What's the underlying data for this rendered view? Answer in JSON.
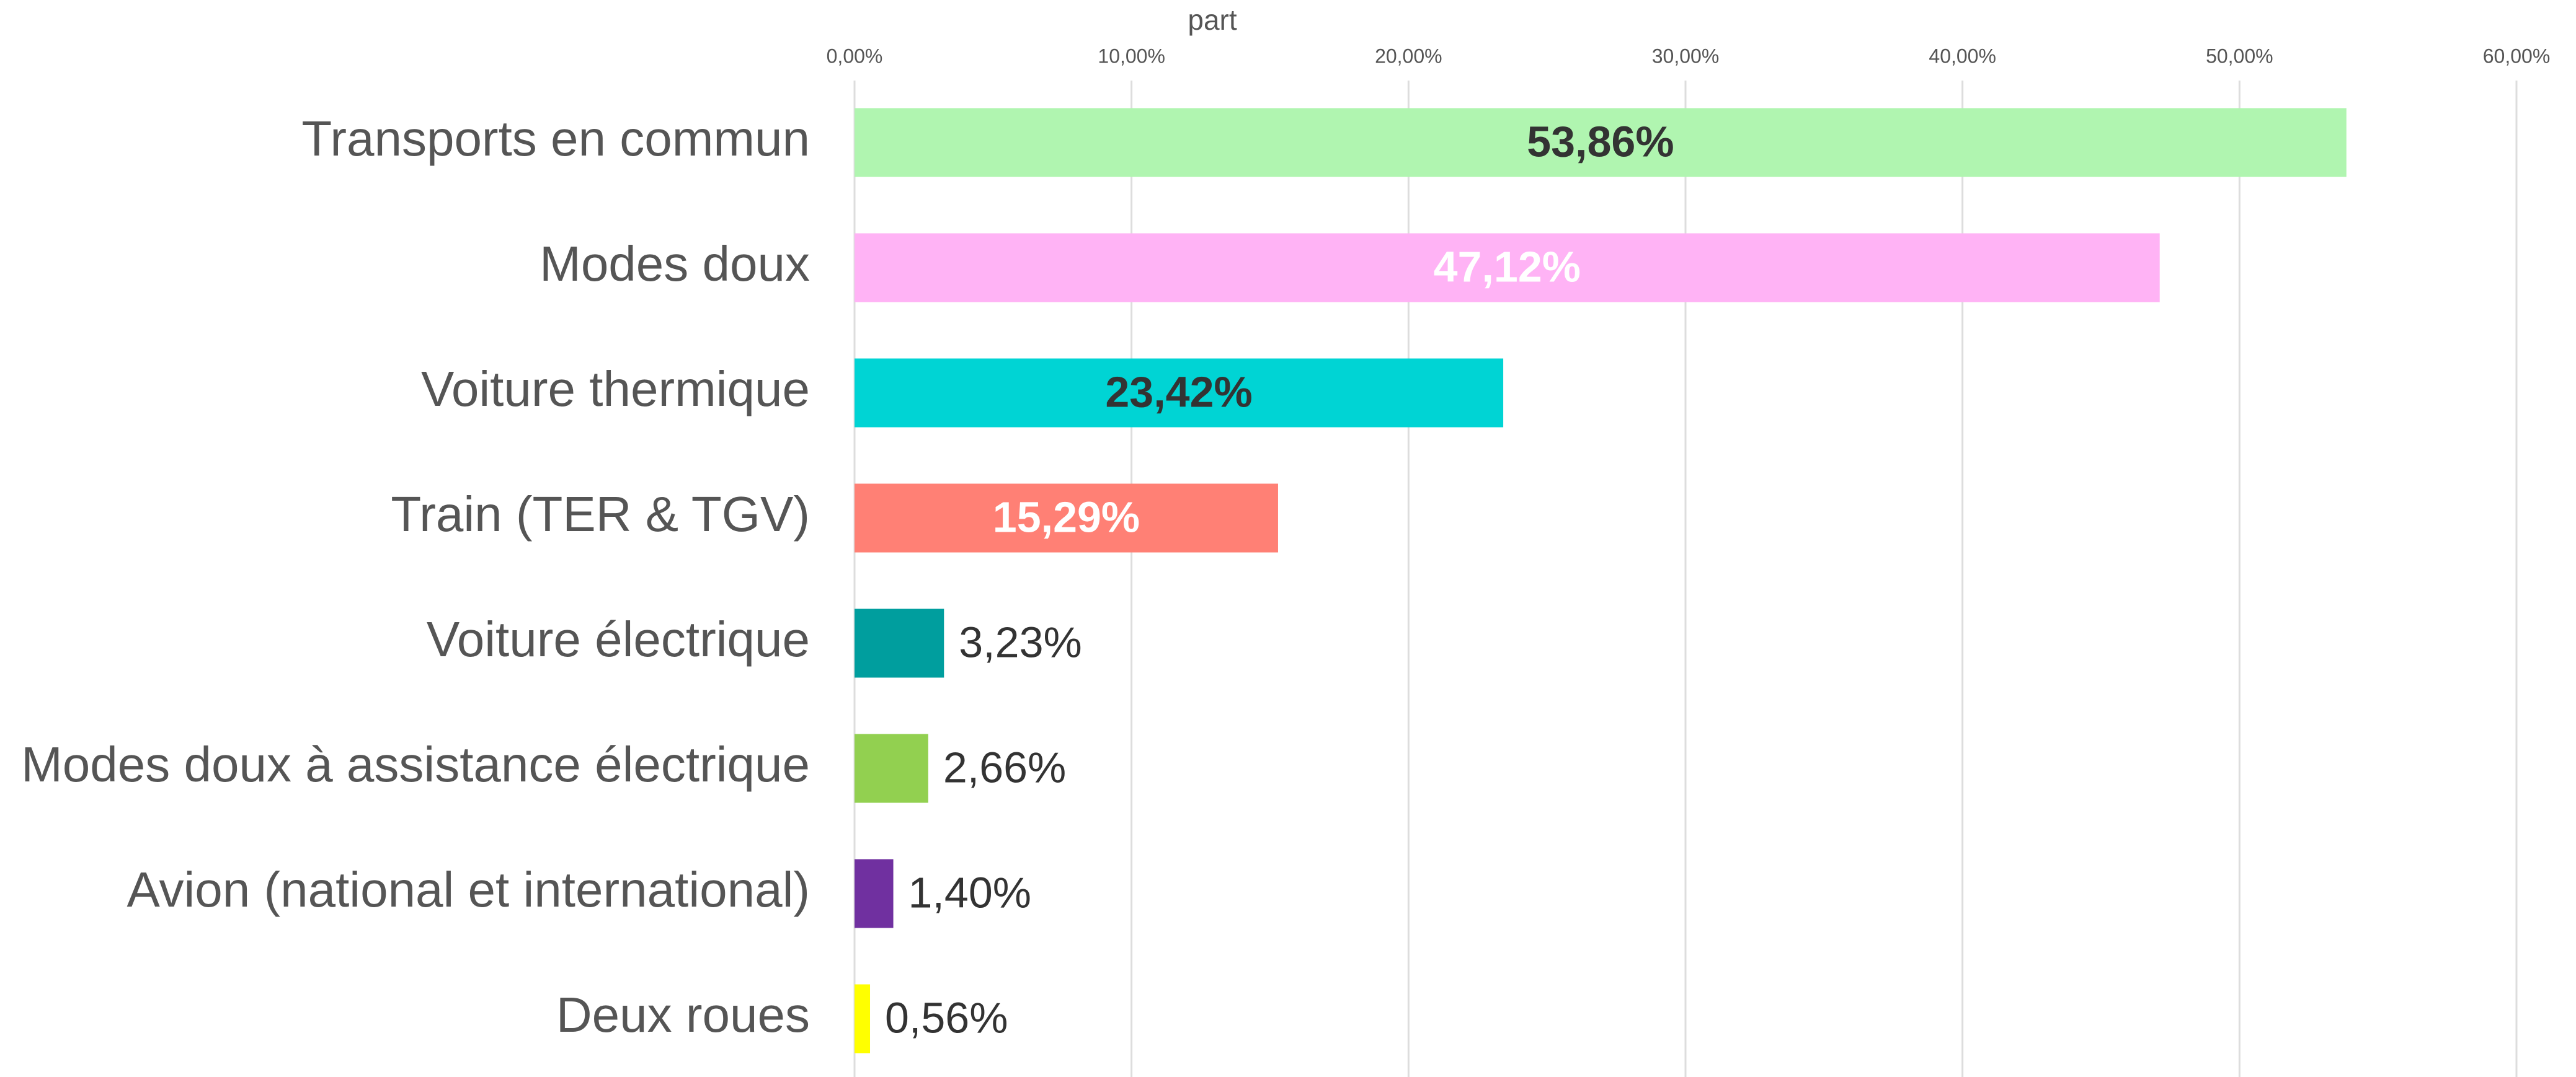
{
  "chart_data": {
    "type": "bar",
    "orientation": "horizontal",
    "x_label": "part",
    "categories": [
      "Transports en commun",
      "Modes doux",
      "Voiture thermique",
      "Train (TER & TGV)",
      "Voiture électrique",
      "Modes doux à assistance électrique",
      "Avion (national et international)",
      "Deux roues"
    ],
    "values": [
      53.86,
      47.12,
      23.42,
      15.29,
      3.23,
      2.66,
      1.4,
      0.56
    ],
    "value_labels": [
      "53,86%",
      "47,12%",
      "23,42%",
      "15,29%",
      "3,23%",
      "2,66%",
      "1,40%",
      "0,56%"
    ],
    "colors": [
      "#b0f5b0",
      "#ffb3f5",
      "#00d4d4",
      "#ff8075",
      "#009e9e",
      "#92d050",
      "#7030a0",
      "#ffff00"
    ],
    "label_colors": [
      "#333333",
      "#ffffff",
      "#333333",
      "#ffffff",
      "#333333",
      "#333333",
      "#333333",
      "#333333"
    ],
    "xlim": [
      0,
      60
    ],
    "xticks": [
      {
        "value": 0,
        "label": "0,00%"
      },
      {
        "value": 10,
        "label": "10,00%"
      },
      {
        "value": 20,
        "label": "20,00%"
      },
      {
        "value": 30,
        "label": "30,00%"
      },
      {
        "value": 40,
        "label": "40,00%"
      },
      {
        "value": 50,
        "label": "50,00%"
      },
      {
        "value": 60,
        "label": "60,00%"
      }
    ],
    "grid": true
  }
}
